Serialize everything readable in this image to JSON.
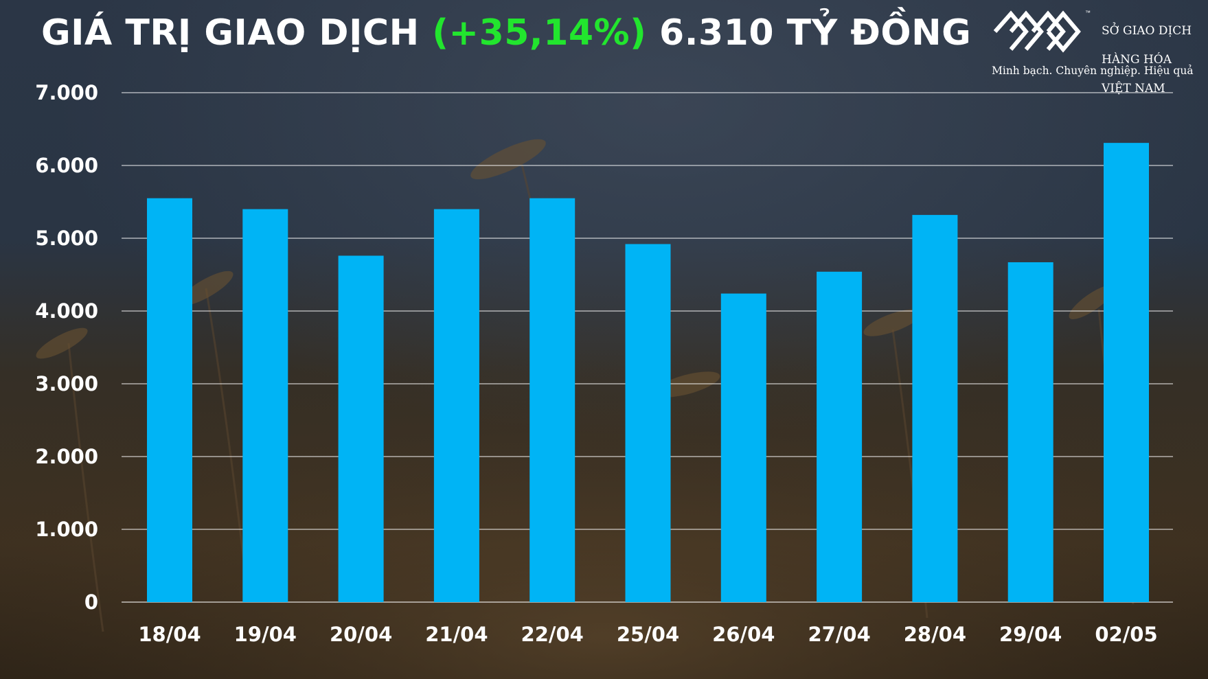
{
  "title": {
    "prefix": "GIÁ TRỊ GIAO DỊCH",
    "change": "(+35,14%)",
    "value": "6.310 TỶ ĐỒNG"
  },
  "logo": {
    "icon": "mxv-logo-icon",
    "trademark": "™",
    "org_lines": [
      "SỞ GIAO DỊCH",
      "HÀNG HÓA",
      "VIỆT NAM"
    ],
    "tagline": "Minh bạch. Chuyên nghiệp. Hiệu quả"
  },
  "colors": {
    "bar": "#00b4f5",
    "change_text": "#22e52e",
    "gridline": "#ffffff",
    "text": "#ffffff"
  },
  "chart_data": {
    "type": "bar",
    "title": "GIÁ TRỊ GIAO DỊCH (+35,14%) 6.310 TỶ ĐỒNG",
    "xlabel": "",
    "ylabel": "",
    "categories": [
      "18/04",
      "19/04",
      "20/04",
      "21/04",
      "22/04",
      "25/04",
      "26/04",
      "27/04",
      "28/04",
      "29/04",
      "02/05"
    ],
    "values": [
      5550,
      5400,
      4760,
      5400,
      5550,
      4920,
      4240,
      4540,
      5320,
      4670,
      6310
    ],
    "ylim": [
      0,
      7000
    ],
    "yticks": [
      0,
      1000,
      2000,
      3000,
      4000,
      5000,
      6000,
      7000
    ],
    "ytick_labels": [
      "0",
      "1.000",
      "2.000",
      "3.000",
      "4.000",
      "5.000",
      "6.000",
      "7.000"
    ],
    "grid": true,
    "legend": "none"
  }
}
